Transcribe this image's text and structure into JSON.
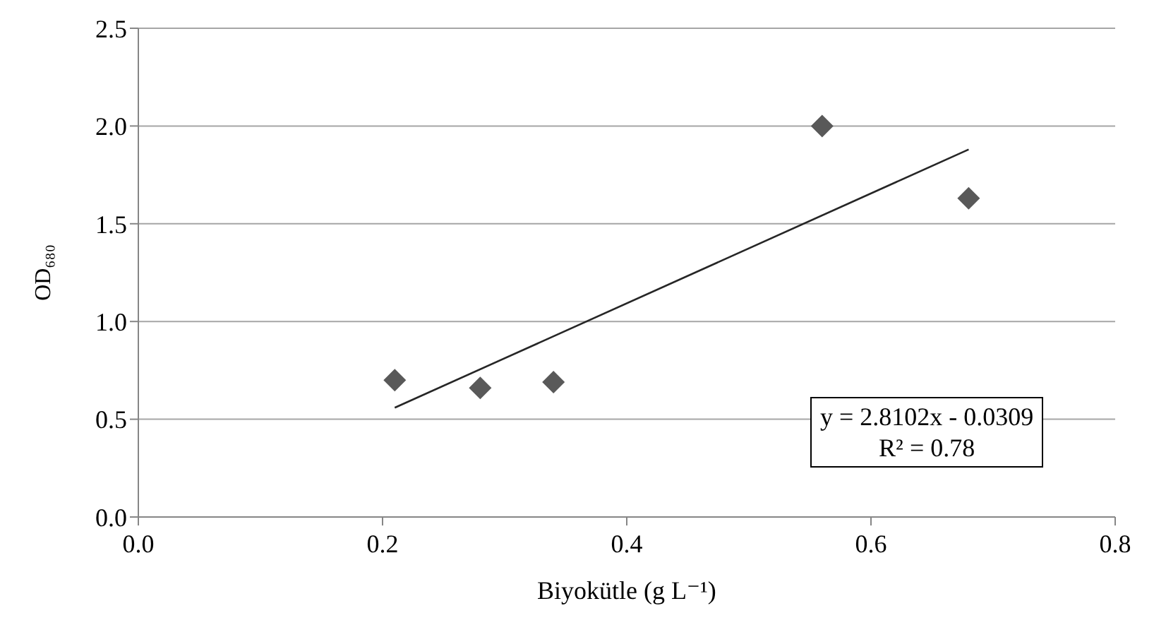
{
  "chart_data": {
    "type": "scatter",
    "xlabel": "Biyokütle (g L⁻¹)",
    "ylabel": "OD₆₈₀",
    "x": [
      0.21,
      0.28,
      0.34,
      0.56,
      0.68
    ],
    "series": [
      {
        "color": "#595959",
        "marker": "diamond",
        "values": [
          0.7,
          0.66,
          0.69,
          2.0,
          1.63
        ]
      },
      {
        "type": "line",
        "marker": "none",
        "color": "#262626",
        "x": [
          0.21,
          0.68
        ],
        "values": [
          0.559,
          1.88
        ]
      }
    ],
    "xlim": [
      0,
      0.8
    ],
    "xticks": [
      {
        "value": 0,
        "label": "0.0"
      },
      0.2,
      0.4,
      0.6,
      0.8
    ],
    "ylim": [
      0,
      2.5
    ],
    "yticks": [
      {
        "value": 0,
        "label": "0.0"
      },
      0.5,
      {
        "value": 1,
        "label": "1.0"
      },
      1.5,
      {
        "value": 2,
        "label": "2.0"
      },
      2.5
    ],
    "grid": "y",
    "annotations": [
      "y = 2.8102x - 0.0309",
      "R² = 0.78"
    ]
  }
}
